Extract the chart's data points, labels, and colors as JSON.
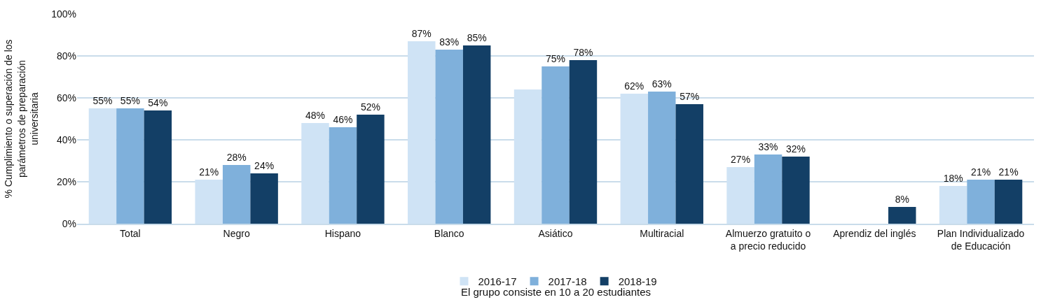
{
  "chart_data": {
    "type": "bar",
    "ylabel": "% Cumplimiento o superación de los parámetros de preparación universitaria",
    "categories": [
      "Total",
      "Negro",
      "Hispano",
      "Blanco",
      "Asiático",
      "Multiracial",
      "Almuerzo gratuito o a precio reducido",
      "Aprendiz del inglés",
      "Plan Individualizado de Educación"
    ],
    "series": [
      {
        "name": "2016-17",
        "color": "#cfe3f5",
        "values": [
          55,
          21,
          48,
          87,
          64,
          62,
          27,
          null,
          18
        ],
        "value_labels": [
          "55%",
          "21%",
          "48%",
          "87%",
          null,
          "62%",
          "27%",
          null,
          "18%"
        ]
      },
      {
        "name": "2017-18",
        "color": "#7fb0db",
        "values": [
          55,
          28,
          46,
          83,
          75,
          63,
          33,
          null,
          21
        ],
        "value_labels": [
          "55%",
          "28%",
          "46%",
          "83%",
          "75%",
          "63%",
          "33%",
          null,
          "21%"
        ]
      },
      {
        "name": "2018-19",
        "color": "#133f66",
        "values": [
          54,
          24,
          52,
          85,
          78,
          57,
          32,
          8,
          21
        ],
        "value_labels": [
          "54%",
          "24%",
          "52%",
          "85%",
          "78%",
          "57%",
          "32%",
          "8%",
          "21%"
        ]
      }
    ],
    "ylim": [
      0,
      100
    ],
    "yticks": [
      {
        "value": 0,
        "label": "0%"
      },
      {
        "value": 20,
        "label": "20%"
      },
      {
        "value": 40,
        "label": "40%"
      },
      {
        "value": 60,
        "label": "60%"
      },
      {
        "value": 80,
        "label": "80%"
      },
      {
        "value": 100,
        "label": "100%"
      }
    ],
    "grid": "y",
    "legend": "bottom",
    "annotations": [
      "El grupo consiste en 10 a 20 estudiantes"
    ]
  }
}
